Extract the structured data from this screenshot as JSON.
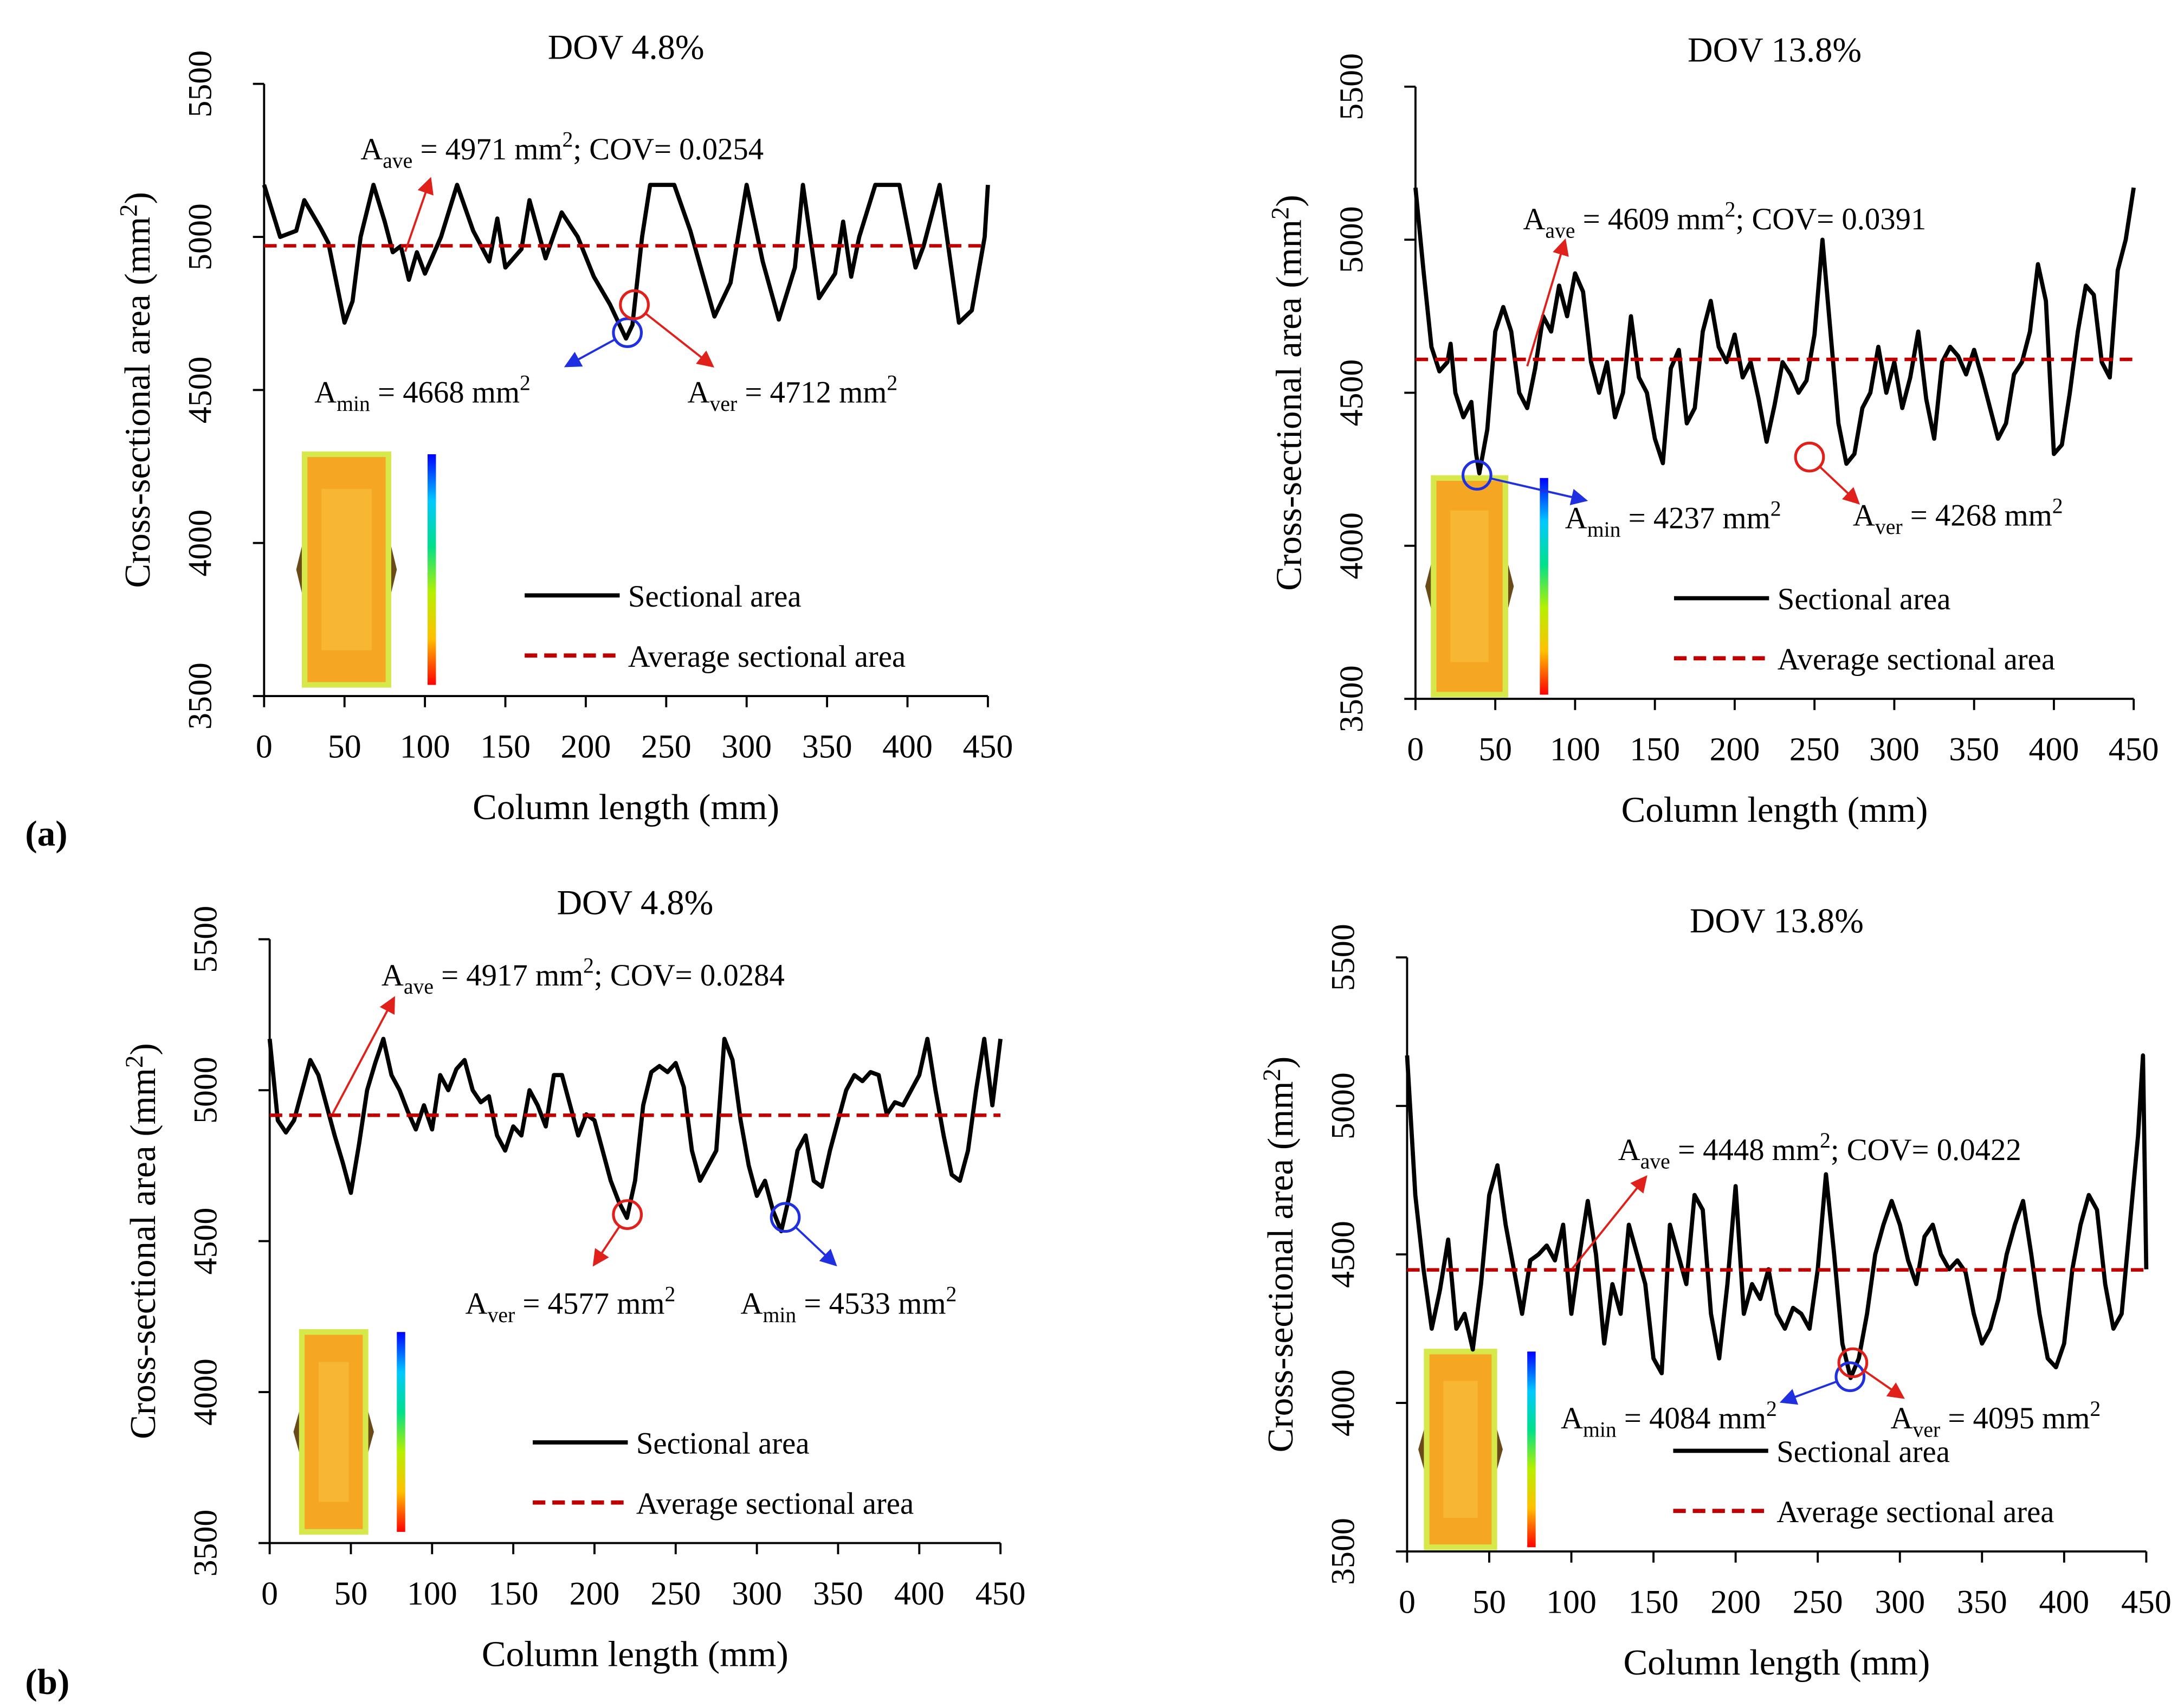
{
  "panels": [
    {
      "label": "(a)"
    },
    {
      "label": "(b)"
    }
  ],
  "chart_data": [
    {
      "type": "line",
      "title": "DOV 4.8%",
      "xlabel": "Column length (mm)",
      "ylabel": [
        "Cross-sectional area (mm",
        "2",
        ")"
      ],
      "xlim": [
        0,
        450
      ],
      "xticks": [
        0,
        50,
        100,
        150,
        200,
        250,
        300,
        350,
        400,
        450
      ],
      "ylim": [
        3500,
        5500
      ],
      "yticks": [
        3500,
        4000,
        4500,
        5000,
        5500
      ],
      "series": [
        {
          "name": "Sectional area",
          "color": "#000000",
          "x": [
            0,
            10,
            20,
            25,
            35,
            40,
            45,
            50,
            55,
            60,
            68,
            75,
            80,
            85,
            90,
            95,
            100,
            110,
            120,
            130,
            140,
            145,
            150,
            160,
            165,
            175,
            185,
            195,
            205,
            215,
            225,
            229,
            235,
            240,
            255,
            265,
            280,
            290,
            300,
            310,
            320,
            330,
            335,
            345,
            355,
            360,
            365,
            370,
            380,
            395,
            405,
            410,
            420,
            432,
            440,
            448,
            450
          ],
          "values": [
            5170,
            5000,
            5020,
            5120,
            5030,
            4980,
            4850,
            4720,
            4790,
            5000,
            5170,
            5050,
            4950,
            4970,
            4860,
            4950,
            4880,
            5000,
            5170,
            5020,
            4920,
            5060,
            4900,
            4960,
            5120,
            4930,
            5080,
            5000,
            4870,
            4780,
            4668,
            4712,
            5000,
            5170,
            5170,
            5020,
            4740,
            4850,
            5170,
            4920,
            4730,
            4900,
            5170,
            4800,
            4880,
            5050,
            4870,
            5000,
            5170,
            5170,
            4900,
            4970,
            5170,
            4720,
            4760,
            5000,
            5170
          ]
        },
        {
          "name": "Average sectional area",
          "color": "#c00000",
          "dashed": true,
          "x": [
            0,
            450
          ],
          "values": [
            4971,
            4971
          ]
        }
      ],
      "annotations": [
        {
          "parts": [
            "A",
            "ave",
            " = 4971 mm",
            "2",
            "; COV=  0.0254"
          ]
        },
        {
          "parts": [
            "A",
            "min",
            " = 4668 mm",
            "2"
          ]
        },
        {
          "parts": [
            "A",
            "ver",
            " = 4712 mm",
            "2"
          ]
        }
      ]
    },
    {
      "type": "line",
      "title": "DOV 13.8%",
      "xlabel": "Column length (mm)",
      "ylabel": [
        "Cross-sectional area (mm",
        "2",
        ")"
      ],
      "xlim": [
        0,
        450
      ],
      "xticks": [
        0,
        50,
        100,
        150,
        200,
        250,
        300,
        350,
        400,
        450
      ],
      "ylim": [
        3500,
        5500
      ],
      "yticks": [
        3500,
        4000,
        4500,
        5000,
        5500
      ],
      "series": [
        {
          "name": "Sectional area",
          "color": "#000000",
          "x": [
            0,
            5,
            10,
            15,
            20,
            22,
            25,
            30,
            35,
            38,
            40,
            45,
            50,
            55,
            60,
            65,
            70,
            75,
            80,
            85,
            90,
            95,
            100,
            105,
            110,
            115,
            120,
            125,
            130,
            135,
            140,
            145,
            150,
            155,
            160,
            165,
            170,
            175,
            180,
            185,
            190,
            195,
            200,
            205,
            210,
            215,
            220,
            225,
            230,
            235,
            240,
            245,
            250,
            255,
            260,
            265,
            270,
            275,
            280,
            285,
            290,
            295,
            300,
            305,
            310,
            315,
            320,
            325,
            330,
            335,
            340,
            345,
            350,
            355,
            360,
            365,
            370,
            375,
            380,
            385,
            390,
            395,
            400,
            405,
            410,
            415,
            420,
            425,
            430,
            435,
            440,
            445,
            450
          ],
          "values": [
            5170,
            4900,
            4650,
            4570,
            4600,
            4660,
            4500,
            4420,
            4470,
            4300,
            4237,
            4380,
            4700,
            4780,
            4700,
            4500,
            4450,
            4580,
            4750,
            4700,
            4850,
            4750,
            4890,
            4830,
            4600,
            4500,
            4600,
            4420,
            4500,
            4750,
            4550,
            4500,
            4350,
            4270,
            4580,
            4640,
            4400,
            4450,
            4700,
            4800,
            4650,
            4600,
            4690,
            4550,
            4600,
            4480,
            4340,
            4460,
            4600,
            4560,
            4500,
            4540,
            4690,
            5000,
            4700,
            4400,
            4268,
            4300,
            4450,
            4500,
            4650,
            4500,
            4600,
            4450,
            4550,
            4700,
            4480,
            4350,
            4600,
            4650,
            4620,
            4560,
            4640,
            4550,
            4450,
            4350,
            4400,
            4560,
            4600,
            4700,
            4920,
            4800,
            4300,
            4330,
            4500,
            4700,
            4850,
            4820,
            4600,
            4550,
            4900,
            5000,
            5170
          ]
        },
        {
          "name": "Average sectional area",
          "color": "#c00000",
          "dashed": true,
          "x": [
            0,
            450
          ],
          "values": [
            4609,
            4609
          ]
        }
      ],
      "annotations": [
        {
          "parts": [
            "A",
            "ave",
            " = 4609 mm",
            "2",
            "; COV= 0.0391"
          ]
        },
        {
          "parts": [
            "A",
            "min",
            " = 4237 mm",
            "2"
          ]
        },
        {
          "parts": [
            "A",
            "ver",
            " = 4268 mm",
            "2"
          ]
        }
      ]
    },
    {
      "type": "line",
      "title": "DOV 4.8%",
      "xlabel": "Column length (mm)",
      "ylabel": [
        "Cross-sectional area (mm",
        "2",
        ")"
      ],
      "xlim": [
        0,
        450
      ],
      "xticks": [
        0,
        50,
        100,
        150,
        200,
        250,
        300,
        350,
        400,
        450
      ],
      "ylim": [
        3500,
        5500
      ],
      "yticks": [
        3500,
        4000,
        4500,
        5000,
        5500
      ],
      "series": [
        {
          "name": "Sectional area",
          "color": "#000000",
          "x": [
            0,
            5,
            10,
            15,
            20,
            25,
            30,
            35,
            40,
            45,
            50,
            55,
            60,
            65,
            70,
            75,
            80,
            85,
            90,
            95,
            100,
            105,
            110,
            115,
            120,
            125,
            130,
            135,
            140,
            145,
            150,
            155,
            160,
            165,
            170,
            175,
            180,
            185,
            190,
            195,
            200,
            205,
            210,
            215,
            220,
            225,
            230,
            235,
            240,
            245,
            250,
            255,
            260,
            265,
            270,
            275,
            280,
            285,
            290,
            295,
            300,
            305,
            310,
            315,
            320,
            325,
            330,
            335,
            340,
            345,
            350,
            355,
            360,
            365,
            370,
            375,
            380,
            385,
            390,
            395,
            400,
            405,
            410,
            415,
            420,
            425,
            430,
            435,
            440,
            445,
            450
          ],
          "values": [
            5170,
            4900,
            4860,
            4900,
            5000,
            5100,
            5050,
            4950,
            4850,
            4760,
            4660,
            4820,
            5000,
            5090,
            5170,
            5050,
            5000,
            4930,
            4870,
            4950,
            4870,
            5050,
            5000,
            5070,
            5100,
            5000,
            4960,
            4980,
            4850,
            4800,
            4880,
            4850,
            5000,
            4950,
            4880,
            5050,
            5050,
            4950,
            4850,
            4920,
            4900,
            4800,
            4700,
            4630,
            4577,
            4700,
            4950,
            5060,
            5080,
            5060,
            5090,
            5010,
            4800,
            4700,
            4750,
            4800,
            5170,
            5100,
            4900,
            4750,
            4650,
            4700,
            4600,
            4533,
            4650,
            4800,
            4850,
            4700,
            4680,
            4800,
            4900,
            5000,
            5050,
            5030,
            5060,
            5050,
            4920,
            4960,
            4950,
            5000,
            5050,
            5170,
            5000,
            4850,
            4720,
            4700,
            4800,
            5000,
            5170,
            4950,
            5170
          ]
        },
        {
          "name": "Average sectional area",
          "color": "#c00000",
          "dashed": true,
          "x": [
            0,
            450
          ],
          "values": [
            4917,
            4917
          ]
        }
      ],
      "annotations": [
        {
          "parts": [
            "A",
            "ave",
            " = 4917 mm",
            "2",
            "; COV= 0.0284"
          ]
        },
        {
          "parts": [
            "A",
            "ver",
            " = 4577 mm",
            "2"
          ]
        },
        {
          "parts": [
            "A",
            "min",
            " = 4533 mm",
            "2"
          ]
        }
      ]
    },
    {
      "type": "line",
      "title": "DOV 13.8%",
      "xlabel": "Column length (mm)",
      "ylabel": [
        "Cross-sectional area (mm",
        "2",
        ")"
      ],
      "xlim": [
        0,
        450
      ],
      "xticks": [
        0,
        50,
        100,
        150,
        200,
        250,
        300,
        350,
        400,
        450
      ],
      "ylim": [
        3500,
        5500
      ],
      "yticks": [
        3500,
        4000,
        4500,
        5000,
        5500
      ],
      "series": [
        {
          "name": "Sectional area",
          "color": "#000000",
          "x": [
            0,
            5,
            10,
            15,
            20,
            25,
            30,
            35,
            40,
            45,
            50,
            55,
            60,
            65,
            70,
            75,
            80,
            85,
            90,
            95,
            100,
            105,
            110,
            115,
            120,
            125,
            130,
            135,
            140,
            145,
            150,
            155,
            160,
            165,
            170,
            175,
            180,
            185,
            190,
            195,
            200,
            205,
            210,
            215,
            220,
            225,
            230,
            235,
            240,
            245,
            250,
            255,
            260,
            265,
            270,
            275,
            280,
            285,
            290,
            295,
            300,
            305,
            310,
            315,
            320,
            325,
            330,
            335,
            340,
            345,
            350,
            355,
            360,
            365,
            370,
            375,
            380,
            385,
            390,
            395,
            400,
            405,
            410,
            415,
            420,
            425,
            430,
            435,
            440,
            445,
            448,
            450
          ],
          "values": [
            5170,
            4700,
            4450,
            4250,
            4380,
            4550,
            4250,
            4300,
            4180,
            4400,
            4700,
            4800,
            4600,
            4450,
            4300,
            4480,
            4500,
            4530,
            4480,
            4600,
            4300,
            4500,
            4680,
            4500,
            4200,
            4400,
            4300,
            4600,
            4500,
            4400,
            4150,
            4100,
            4600,
            4500,
            4400,
            4700,
            4650,
            4300,
            4150,
            4400,
            4730,
            4300,
            4400,
            4350,
            4450,
            4300,
            4250,
            4320,
            4300,
            4250,
            4450,
            4770,
            4500,
            4200,
            4084,
            4150,
            4300,
            4500,
            4600,
            4680,
            4600,
            4480,
            4400,
            4560,
            4600,
            4500,
            4450,
            4480,
            4440,
            4300,
            4200,
            4250,
            4350,
            4500,
            4600,
            4680,
            4500,
            4300,
            4150,
            4120,
            4200,
            4450,
            4600,
            4700,
            4650,
            4400,
            4250,
            4300,
            4600,
            4900,
            5170,
            4450
          ]
        },
        {
          "name": "Average sectional area",
          "color": "#c00000",
          "dashed": true,
          "x": [
            0,
            450
          ],
          "values": [
            4448,
            4448
          ]
        }
      ],
      "annotations": [
        {
          "parts": [
            "A",
            "ave",
            " = 4448 mm",
            "2",
            "; COV= 0.0422"
          ]
        },
        {
          "parts": [
            "A",
            "min",
            " = 4084 mm",
            "2"
          ]
        },
        {
          "parts": [
            "A",
            "ver",
            " = 4095 mm",
            "2"
          ]
        }
      ]
    }
  ]
}
